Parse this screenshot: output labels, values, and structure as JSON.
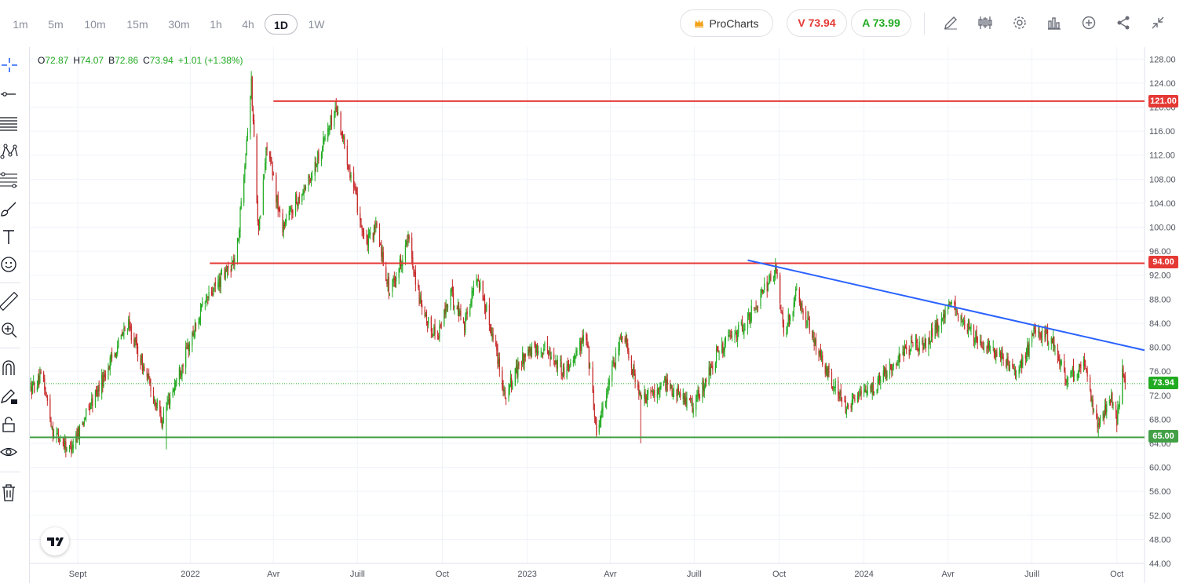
{
  "timeframes": {
    "items": [
      "1m",
      "5m",
      "10m",
      "15m",
      "30m",
      "1h",
      "4h",
      "1D",
      "1W"
    ],
    "active": "1D"
  },
  "prochart": {
    "label": "ProCharts"
  },
  "quote": {
    "sell": "V 73.94",
    "buy": "A 73.99"
  },
  "toolbar_icons": [
    "pencil-icon",
    "indicators-icon",
    "settings-icon",
    "chart-type-icon",
    "add-icon",
    "share-icon",
    "collapse-icon"
  ],
  "left_tools": [
    "crosshair-icon",
    "line-tool-icon",
    "parallel-lines-icon",
    "pattern-icon",
    "fib-icon",
    "brush-icon",
    "text-icon",
    "emoji-icon",
    "ruler-icon",
    "zoom-in-icon",
    "magnet-icon",
    "lock-draw-icon",
    "lock-icon",
    "eye-icon",
    "trash-icon"
  ],
  "ohlc": {
    "open_label": "O",
    "open": "72.87",
    "high_label": "H",
    "high": "74.07",
    "low_label": "B",
    "low": "72.86",
    "close_label": "C",
    "close": "73.94",
    "change": "+1.01 (+1.38%)"
  },
  "colors": {
    "up": "#22ab22",
    "down": "#c62828",
    "resistance": "#e53935",
    "support": "#43a047",
    "trendline": "#2962ff",
    "last_price": "#22ab22"
  },
  "chart_data": {
    "type": "candlestick",
    "y_ticks": [
      "128.00",
      "124.00",
      "120.00",
      "116.00",
      "112.00",
      "108.00",
      "104.00",
      "100.00",
      "96.00",
      "92.00",
      "88.00",
      "84.00",
      "80.00",
      "76.00",
      "72.00",
      "68.00",
      "64.00",
      "60.00",
      "56.00",
      "52.00",
      "48.00",
      "44.00"
    ],
    "ylim": [
      44,
      130
    ],
    "x_ticks": [
      "Sept",
      "2022",
      "Avr",
      "Juill",
      "Oct",
      "2023",
      "Avr",
      "Juill",
      "Oct",
      "2024",
      "Avr",
      "Juill",
      "Oct"
    ],
    "x_range": [
      "2021-07-11",
      "2024-10-31"
    ],
    "price_path": [
      [
        "2021-07-12",
        73
      ],
      [
        "2021-07-25",
        75
      ],
      [
        "2021-08-05",
        66
      ],
      [
        "2021-08-23",
        63
      ],
      [
        "2021-09-20",
        72
      ],
      [
        "2021-10-25",
        84
      ],
      [
        "2021-12-01",
        68
      ],
      [
        "2021-12-20",
        76
      ],
      [
        "2022-01-15",
        87
      ],
      [
        "2022-02-20",
        95
      ],
      [
        "2022-03-08",
        124
      ],
      [
        "2022-03-16",
        99
      ],
      [
        "2022-03-25",
        114
      ],
      [
        "2022-04-10",
        100
      ],
      [
        "2022-05-10",
        108
      ],
      [
        "2022-06-08",
        120
      ],
      [
        "2022-06-25",
        108
      ],
      [
        "2022-07-10",
        97
      ],
      [
        "2022-07-22",
        100
      ],
      [
        "2022-08-05",
        89
      ],
      [
        "2022-08-25",
        98
      ],
      [
        "2022-09-10",
        85
      ],
      [
        "2022-09-26",
        82
      ],
      [
        "2022-10-10",
        89
      ],
      [
        "2022-10-25",
        84
      ],
      [
        "2022-11-08",
        92
      ],
      [
        "2022-11-28",
        80
      ],
      [
        "2022-12-08",
        72
      ],
      [
        "2022-12-30",
        79
      ],
      [
        "2023-01-20",
        80
      ],
      [
        "2023-02-10",
        76
      ],
      [
        "2023-03-06",
        82
      ],
      [
        "2023-03-17",
        66
      ],
      [
        "2023-04-05",
        77
      ],
      [
        "2023-04-15",
        83
      ],
      [
        "2023-05-04",
        71
      ],
      [
        "2023-06-01",
        74
      ],
      [
        "2023-06-30",
        70
      ],
      [
        "2023-07-26",
        79
      ],
      [
        "2023-08-25",
        84
      ],
      [
        "2023-09-28",
        93
      ],
      [
        "2023-10-06",
        82
      ],
      [
        "2023-10-20",
        89
      ],
      [
        "2023-11-15",
        78
      ],
      [
        "2023-12-12",
        70
      ],
      [
        "2024-01-10",
        73
      ],
      [
        "2024-02-10",
        79
      ],
      [
        "2024-03-10",
        81
      ],
      [
        "2024-04-05",
        87
      ],
      [
        "2024-04-30",
        82
      ],
      [
        "2024-05-30",
        78
      ],
      [
        "2024-06-15",
        75
      ],
      [
        "2024-07-05",
        83
      ],
      [
        "2024-07-25",
        81
      ],
      [
        "2024-08-06",
        75
      ],
      [
        "2024-08-26",
        77
      ],
      [
        "2024-09-11",
        67
      ],
      [
        "2024-09-25",
        71
      ],
      [
        "2024-10-01",
        68
      ],
      [
        "2024-10-07",
        76
      ],
      [
        "2024-10-10",
        73.94
      ]
    ],
    "spikes": [
      [
        "2021-08-23",
        62.5,
        "low"
      ],
      [
        "2021-12-06",
        63,
        "low"
      ],
      [
        "2022-03-08",
        126,
        "high"
      ],
      [
        "2022-06-08",
        121.5,
        "high"
      ],
      [
        "2023-03-17",
        65,
        "low"
      ],
      [
        "2023-05-04",
        64,
        "low"
      ],
      [
        "2023-09-28",
        94,
        "high"
      ],
      [
        "2024-04-05",
        87,
        "high"
      ],
      [
        "2024-09-11",
        65,
        "low"
      ],
      [
        "2024-10-07",
        78,
        "high"
      ]
    ],
    "levels": [
      {
        "value": 121.0,
        "label": "121.00",
        "kind": "resistance",
        "from": "2022-04-01",
        "to": "2024-10-31"
      },
      {
        "value": 94.0,
        "label": "94.00",
        "kind": "resistance",
        "from": "2022-01-22",
        "to": "2024-10-31"
      },
      {
        "value": 65.0,
        "label": "65.00",
        "kind": "support",
        "from": "2021-07-11",
        "to": "2024-10-31"
      }
    ],
    "trendline": {
      "from": [
        "2023-08-28",
        94.5
      ],
      "to": [
        "2024-10-31",
        79.5
      ]
    },
    "last_price": {
      "value": 73.94,
      "label": "73.94"
    }
  }
}
